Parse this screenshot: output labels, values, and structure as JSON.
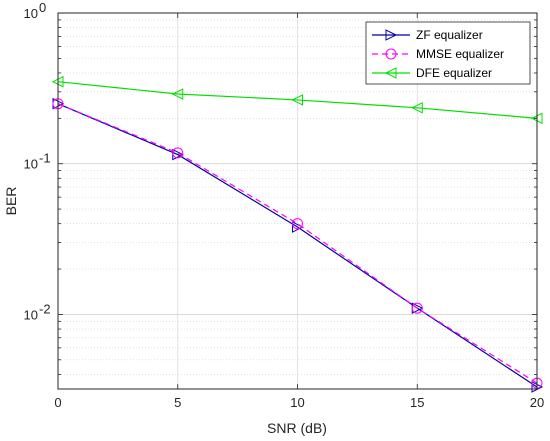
{
  "chart_data": {
    "type": "line",
    "title": "",
    "xlabel": "SNR (dB)",
    "ylabel": "BER",
    "xlim": [
      0,
      20
    ],
    "ylim": [
      0.0032,
      1
    ],
    "yscale": "log",
    "grid": true,
    "minor_grid": true,
    "legend_position": "top-right",
    "x_ticks": [
      0,
      5,
      10,
      15,
      20
    ],
    "x_tick_labels": [
      "0",
      "5",
      "10",
      "15",
      "20"
    ],
    "y_ticks": [
      {
        "value": 1,
        "base": "10",
        "exp": "0"
      },
      {
        "value": 0.1,
        "base": "10",
        "exp": "-1"
      },
      {
        "value": 0.01,
        "base": "10",
        "exp": "-2"
      }
    ],
    "x": [
      0,
      5,
      10,
      15,
      20
    ],
    "series": [
      {
        "name": "ZF equalizer",
        "values": [
          0.25,
          0.115,
          0.038,
          0.011,
          0.0033
        ],
        "color": "#0000a8",
        "dash": "solid",
        "marker": "triangle-right"
      },
      {
        "name": "MMSE equalizer",
        "values": [
          0.25,
          0.118,
          0.04,
          0.011,
          0.0035
        ],
        "color": "#ff00ff",
        "dash": "dashed",
        "marker": "circle"
      },
      {
        "name": "DFE equalizer",
        "values": [
          0.35,
          0.29,
          0.265,
          0.235,
          0.2
        ],
        "color": "#00e000",
        "dash": "solid",
        "marker": "triangle-left"
      }
    ]
  }
}
